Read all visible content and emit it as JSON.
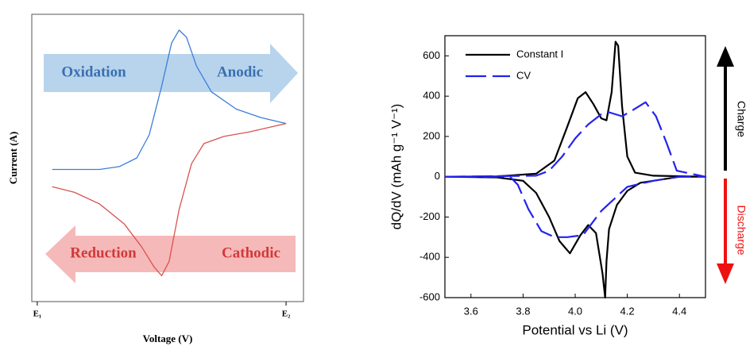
{
  "chart_data": [
    {
      "type": "line",
      "xlabel": "Voltage (V)",
      "ylabel": "Current (A)",
      "xlim": [
        -0.022,
        1.07
      ],
      "ylim": [
        0,
        1
      ],
      "xticks": [
        {
          "value": 0,
          "label": "E₁"
        },
        {
          "value": 1,
          "label": "E₂"
        }
      ],
      "series": [
        {
          "color": "#3b7ddd",
          "x": [
            0.06,
            0.25,
            0.33,
            0.4,
            0.45,
            0.5,
            0.54,
            0.57,
            0.6,
            0.64,
            0.7,
            0.8,
            0.9,
            1.0
          ],
          "values": [
            0.46,
            0.46,
            0.47,
            0.5,
            0.58,
            0.75,
            0.9,
            0.945,
            0.92,
            0.82,
            0.73,
            0.67,
            0.64,
            0.62
          ]
        },
        {
          "color": "#d9534f",
          "x": [
            0.06,
            0.15,
            0.25,
            0.35,
            0.42,
            0.47,
            0.5,
            0.53,
            0.57,
            0.62,
            0.67,
            0.75,
            0.85,
            1.0
          ],
          "values": [
            0.4,
            0.38,
            0.34,
            0.27,
            0.19,
            0.12,
            0.09,
            0.14,
            0.32,
            0.48,
            0.55,
            0.575,
            0.59,
            0.62
          ]
        }
      ],
      "annotations": [
        {
          "text": "Oxidation",
          "color": "#3a6fb0"
        },
        {
          "text": "Anodic",
          "color": "#3a6fb0"
        },
        {
          "text": "Reduction",
          "color": "#d03a3a"
        },
        {
          "text": "Cathodic",
          "color": "#d03a3a"
        }
      ]
    },
    {
      "type": "line",
      "xlabel": "Potential vs Li (V)",
      "ylabel": "dQ/dV (mAh g⁻¹ V⁻¹)",
      "xlim": [
        3.5,
        4.5
      ],
      "ylim": [
        -600,
        700
      ],
      "xticks": [
        {
          "value": 3.6,
          "label": "3.6"
        },
        {
          "value": 3.8,
          "label": "3.8"
        },
        {
          "value": 4.0,
          "label": "4.0"
        },
        {
          "value": 4.2,
          "label": "4.2"
        },
        {
          "value": 4.4,
          "label": "4.4"
        }
      ],
      "yticks": [
        -600,
        -400,
        -200,
        0,
        200,
        400,
        600
      ],
      "series": [
        {
          "name": "Constant I",
          "color": "#000000",
          "dash": false,
          "x": [
            3.5,
            3.7,
            3.85,
            3.92,
            3.97,
            4.01,
            4.04,
            4.07,
            4.1,
            4.12,
            4.14,
            4.155,
            4.165,
            4.18,
            4.2,
            4.23,
            4.3,
            4.5,
            4.4,
            4.25,
            4.2,
            4.16,
            4.13,
            4.12,
            4.115,
            4.105,
            4.08,
            4.05,
            4.02,
            3.98,
            3.94,
            3.9,
            3.85,
            3.8,
            3.7,
            3.5
          ],
          "values": [
            0,
            2,
            15,
            80,
            250,
            390,
            420,
            360,
            290,
            280,
            420,
            670,
            650,
            350,
            100,
            20,
            5,
            0,
            0,
            -30,
            -70,
            -140,
            -260,
            -420,
            -600,
            -480,
            -280,
            -240,
            -290,
            -380,
            -320,
            -200,
            -80,
            -20,
            -3,
            0
          ]
        },
        {
          "name": "CV",
          "color": "#2323ee",
          "dash": true,
          "x": [
            3.5,
            3.85,
            3.9,
            3.95,
            4.0,
            4.05,
            4.1,
            4.13,
            4.18,
            4.22,
            4.27,
            4.31,
            4.35,
            4.39,
            4.5,
            4.4,
            4.3,
            4.2,
            4.1,
            4.03,
            3.97,
            3.92,
            3.87,
            3.82,
            3.78,
            3.75,
            3.5
          ],
          "values": [
            0,
            5,
            30,
            100,
            190,
            260,
            310,
            320,
            300,
            330,
            370,
            300,
            170,
            30,
            0,
            0,
            -20,
            -50,
            -170,
            -290,
            -300,
            -300,
            -270,
            -160,
            -40,
            0,
            0
          ]
        }
      ],
      "annotations": [
        {
          "text": "Charge",
          "color": "#000000"
        },
        {
          "text": "Discharge",
          "color": "#ee1111"
        }
      ]
    }
  ]
}
